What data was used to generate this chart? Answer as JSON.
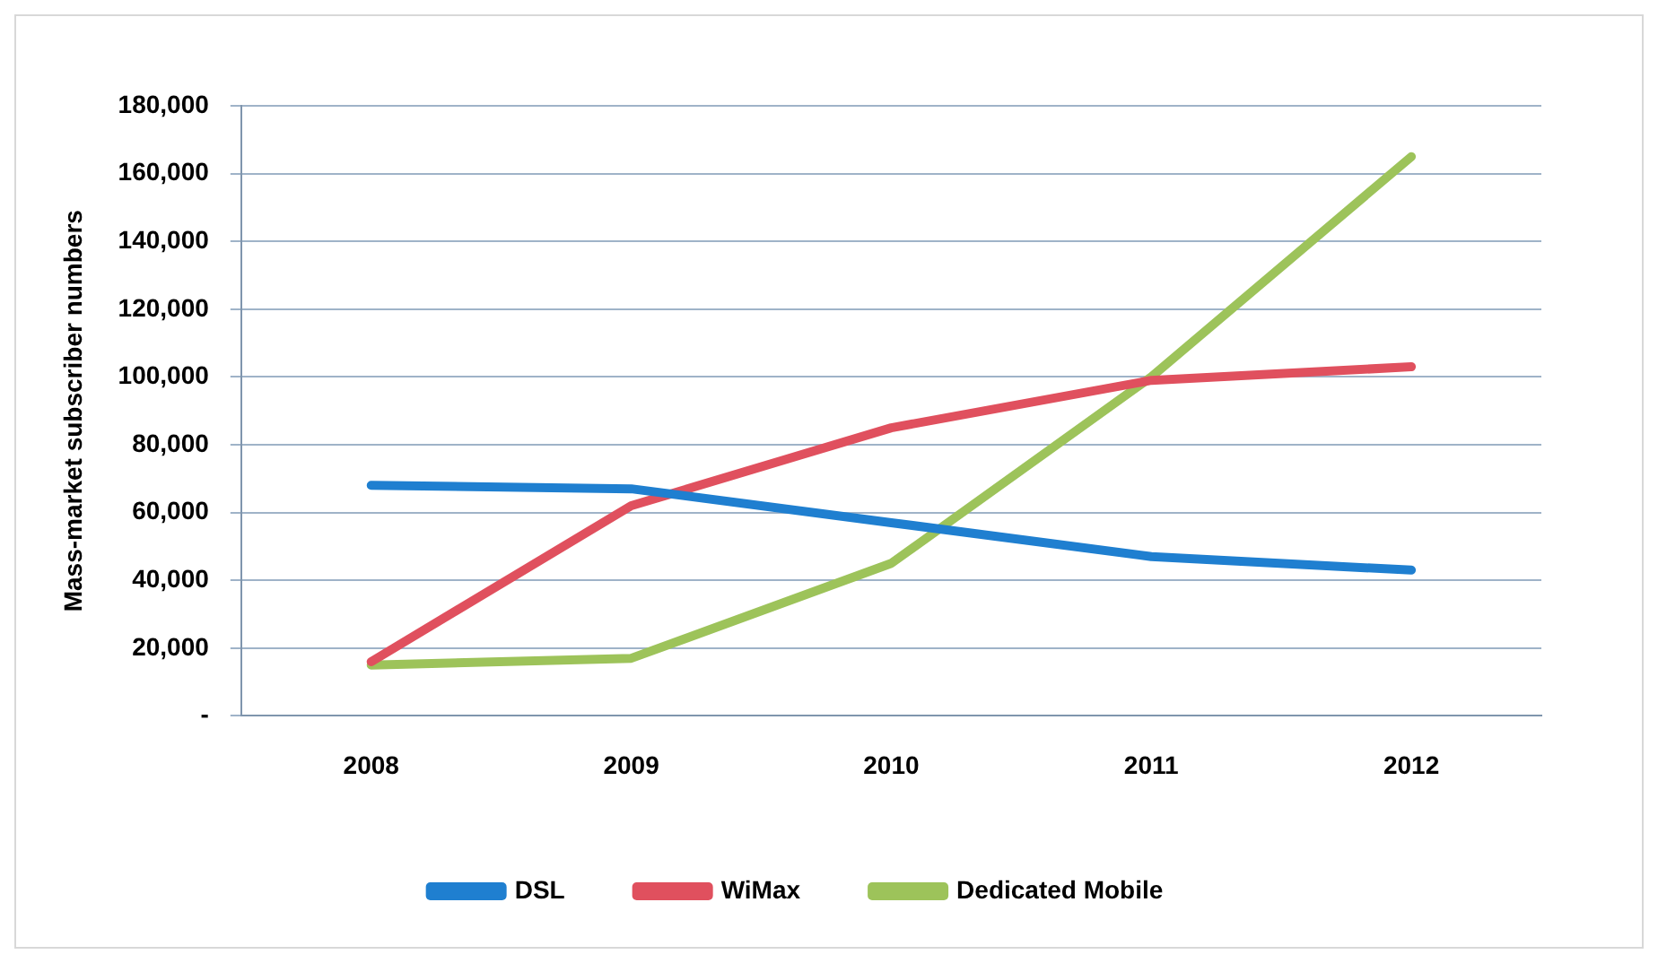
{
  "chart_data": {
    "type": "line",
    "ylabel": "Mass-market subscriber numbers",
    "categories": [
      "2008",
      "2009",
      "2010",
      "2011",
      "2012"
    ],
    "series": [
      {
        "name": "DSL",
        "color": "#1f7fd0",
        "values": [
          68000,
          67000,
          57000,
          47000,
          43000
        ]
      },
      {
        "name": "WiMax",
        "color": "#e0505e",
        "values": [
          16000,
          62000,
          85000,
          99000,
          103000
        ]
      },
      {
        "name": "Dedicated Mobile",
        "color": "#9dc35a",
        "values": [
          15000,
          17000,
          45000,
          100000,
          165000
        ]
      }
    ],
    "ylim": [
      0,
      180000
    ],
    "yticks": [
      {
        "value": 0,
        "label": "-"
      },
      {
        "value": 20000,
        "label": "20,000"
      },
      {
        "value": 40000,
        "label": "40,000"
      },
      {
        "value": 60000,
        "label": "60,000"
      },
      {
        "value": 80000,
        "label": "80,000"
      },
      {
        "value": 100000,
        "label": "100,000"
      },
      {
        "value": 120000,
        "label": "120,000"
      },
      {
        "value": 140000,
        "label": "140,000"
      },
      {
        "value": 160000,
        "label": "160,000"
      },
      {
        "value": 180000,
        "label": "180,000"
      }
    ],
    "grid": "y",
    "legend": "bottom",
    "marker": "none",
    "line_style": "solid"
  }
}
